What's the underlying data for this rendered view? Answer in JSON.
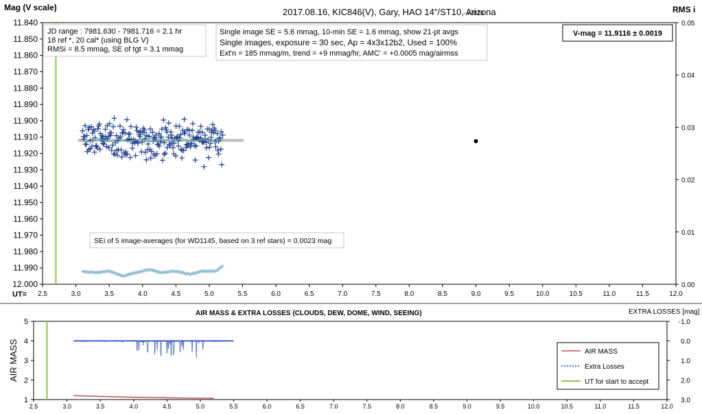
{
  "top_chart": {
    "title": "2017.08.16,  KIC846(V),  Gary,  HAO  14\"/ST10, Arizona",
    "version": "- v7816",
    "ylabel_left": "Mag (V scale)",
    "ylabel_right": "RMS i",
    "xaxis_prefix": "UT=",
    "y_ticks": [
      "11.840",
      "11.850",
      "11.860",
      "11.870",
      "11.880",
      "11.890",
      "11.900",
      "11.910",
      "11.920",
      "11.930",
      "11.940",
      "11.950",
      "11.960",
      "11.970",
      "11.980",
      "11.990",
      "12.000"
    ],
    "y2_ticks": [
      "0.05",
      "0.04",
      "0.03",
      "0.02",
      "0.01",
      "0.00"
    ],
    "x_ticks": [
      "2.5",
      "3.0",
      "3.5",
      "4.0",
      "4.5",
      "5.0",
      "5.5",
      "6.0",
      "6.5",
      "7.0",
      "7.5",
      "8.0",
      "8.5",
      "9.0",
      "9.5",
      "10.0",
      "10.5",
      "11.0",
      "11.5",
      "12.0"
    ],
    "info_box_1": [
      "JD range : 7981.630 - 7981.716 =  2.1 hr",
      "18 ref *, 20 cal* (using BLG V)",
      "RMSi = 8.5 mmag, SE of tgt = 3.1 mmag"
    ],
    "info_box_2": [
      "Single image SE = 5.6 mmag, 10-min SE = 1.6 mmag, show 21-pt avgs",
      "Single images, exposure = 30 sec, Ap = 4x3x12b2, Used = 100%",
      "Ext'n = 185 mmag/m, trend = +9 mmag/hr, AMC' = +0.0005 mag/airmss"
    ],
    "vmag_box": "V-mag = 11.9116 ± 0.0019",
    "sei_box": "SEi of 5 image-averages (for WD1145, based on 3 ref stars) = 0.0023 mag"
  },
  "bottom_chart": {
    "title": "AIR MASS & EXTRA LOSSES (CLOUDS, DEW, DOME, WIND, SEEING)",
    "ylabel_left": "AIR MASS",
    "ylabel_right": "EXTRA LOSSES [mag]",
    "y_ticks": [
      "5",
      "4",
      "3",
      "2",
      "1"
    ],
    "y2_ticks": [
      "-1.0",
      "0.0",
      "1.0",
      "2.0",
      "3.0"
    ],
    "x_ticks": [
      "2.5",
      "3.0",
      "3.5",
      "4.0",
      "4.5",
      "5.0",
      "5.5",
      "6.0",
      "6.5",
      "7.0",
      "7.5",
      "8.0",
      "8.5",
      "9.0",
      "9.5",
      "10.0",
      "10.5",
      "11.0",
      "11.5",
      "12.0"
    ],
    "legend": {
      "air_mass": "AIR MASS",
      "extra_losses": "Extra Losses",
      "ut_start": "UT for start to accept"
    }
  },
  "colors": {
    "target_points": "#1f3f8f",
    "rms_points": "#8fbdd0",
    "mean_line": "#bdbdbd",
    "smooth_line": "#66b2a0",
    "ut_start_line": "#8cc63f",
    "air_mass": "#c0504d",
    "extra_losses": "#1f3fbf"
  },
  "chart_data": [
    {
      "type": "scatter",
      "title": "2017.08.16,  KIC846(V),  Gary,  HAO  14\"/ST10, Arizona",
      "xlabel": "UT=",
      "ylabel": "Mag (V scale)",
      "xlim": [
        2.5,
        12.0
      ],
      "ylim": [
        12.0,
        11.84
      ],
      "y2lim": [
        0.0,
        0.05
      ],
      "ut_start": 2.7,
      "vmag": 11.9116,
      "vmag_se": 0.0019,
      "target_range": {
        "x": [
          3.1,
          5.2
        ],
        "y_mean": 11.912,
        "y_scatter": 0.0056
      },
      "mean_line": {
        "x": [
          3.05,
          5.5
        ],
        "y": 11.912
      },
      "reference_point": {
        "x": 9.0,
        "y": 11.9125
      },
      "rms_curve": {
        "x": [
          3.1,
          3.3,
          3.5,
          3.7,
          3.9,
          4.1,
          4.3,
          4.5,
          4.7,
          4.9,
          5.1,
          5.2
        ],
        "y": [
          11.992,
          11.993,
          11.992,
          11.995,
          11.993,
          11.991,
          11.993,
          11.992,
          11.994,
          11.992,
          11.992,
          11.989
        ]
      }
    },
    {
      "type": "line",
      "title": "AIR MASS & EXTRA LOSSES (CLOUDS, DEW, DOME, WIND, SEEING)",
      "ylabel": "AIR MASS",
      "xlim": [
        2.5,
        12.0
      ],
      "ylim": [
        1,
        5
      ],
      "y2lim": [
        -1.0,
        3.0
      ],
      "series": [
        {
          "name": "AIR MASS",
          "x": [
            3.1,
            3.5,
            4.0,
            4.5,
            5.0,
            5.2
          ],
          "y": [
            1.2,
            1.16,
            1.12,
            1.09,
            1.07,
            1.06
          ]
        },
        {
          "name": "Extra Losses",
          "x": [
            3.1,
            4.0,
            4.1,
            4.2,
            4.4,
            4.6,
            4.7,
            4.75,
            4.8,
            4.9,
            5.0,
            5.1,
            5.2,
            5.5
          ],
          "y": [
            0.0,
            0.0,
            0.4,
            0.1,
            0.3,
            0.2,
            0.5,
            0.9,
            0.3,
            0.2,
            0.4,
            0.8,
            0.0,
            0.0
          ]
        },
        {
          "name": "UT for start to accept",
          "x": [
            2.7,
            2.7
          ],
          "y": [
            1,
            5
          ]
        }
      ]
    }
  ]
}
